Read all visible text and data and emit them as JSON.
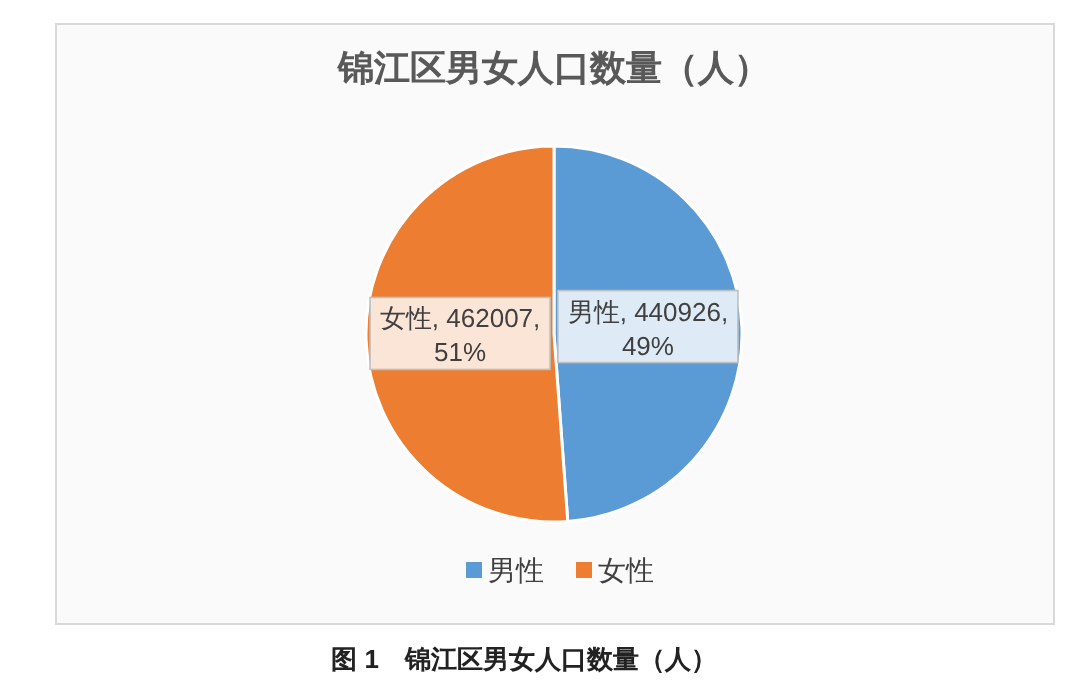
{
  "chart_data": {
    "type": "pie",
    "title": "锦江区男女人口数量（人）",
    "categories": [
      "男性",
      "女性"
    ],
    "values": [
      440926,
      462007
    ],
    "colors": [
      "#5b9bd5",
      "#ed7d31"
    ],
    "value_labels": [
      "男性, 440926,\n49%",
      "女性, 462007,\n51%"
    ],
    "legend": "bottom",
    "annotations": [
      "图 1　锦江区男女人口数量（人）"
    ]
  }
}
